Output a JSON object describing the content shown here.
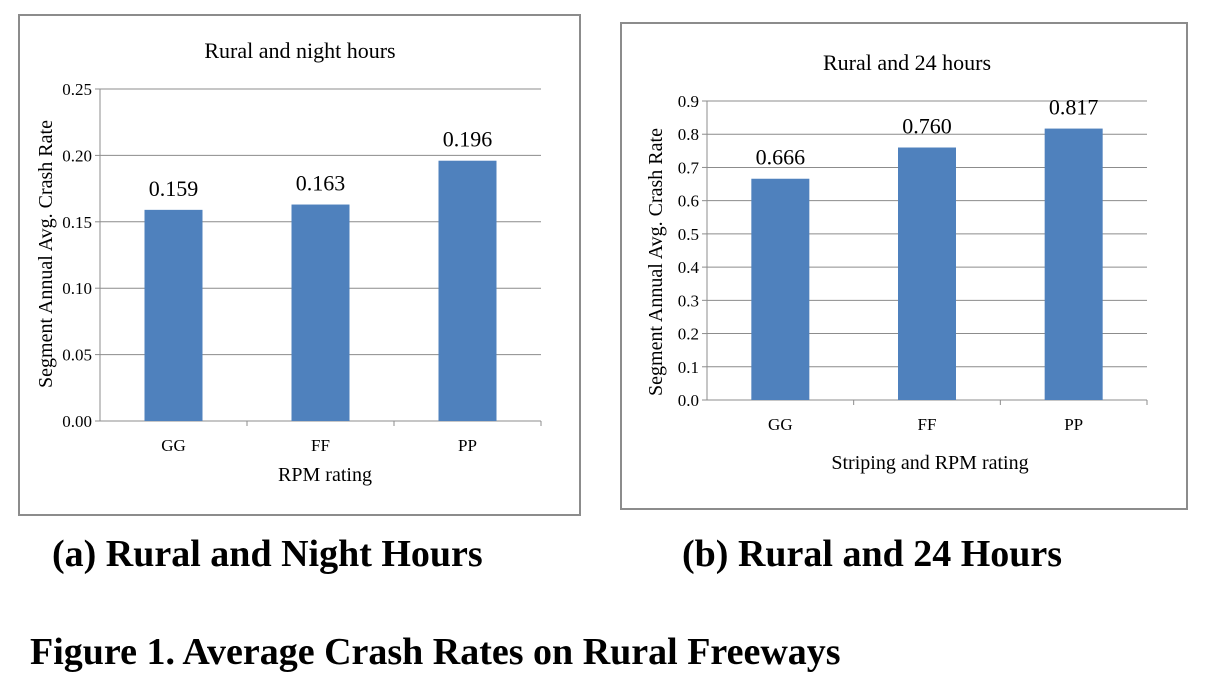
{
  "chart_data": [
    {
      "type": "bar",
      "title": "Rural  and night hours",
      "xlabel": "RPM rating",
      "ylabel": "Segment Annual Avg. Crash Rate",
      "categories": [
        "GG",
        "FF",
        "PP"
      ],
      "values": [
        0.159,
        0.163,
        0.196
      ],
      "data_labels": [
        "0.159",
        "0.163",
        "0.196"
      ],
      "ylim": [
        0,
        0.25
      ],
      "yticks": [
        "0.00",
        "0.05",
        "0.10",
        "0.15",
        "0.20",
        "0.25"
      ],
      "grid": true,
      "bar_color": "#4f81bd"
    },
    {
      "type": "bar",
      "title": "Rural and 24 hours",
      "xlabel": "Striping and RPM rating",
      "ylabel": "Segment Annual Avg. Crash Rate",
      "categories": [
        "GG",
        "FF",
        "PP"
      ],
      "values": [
        0.666,
        0.76,
        0.817
      ],
      "data_labels": [
        "0.666",
        "0.760",
        "0.817"
      ],
      "ylim": [
        0,
        0.9
      ],
      "yticks": [
        "0.0",
        "0.1",
        "0.2",
        "0.3",
        "0.4",
        "0.5",
        "0.6",
        "0.7",
        "0.8",
        "0.9"
      ],
      "grid": true,
      "bar_color": "#4f81bd"
    }
  ],
  "captions": {
    "a": "(a) Rural and Night Hours",
    "b": "(b) Rural and 24 Hours",
    "figure": "Figure 1. Average Crash Rates on Rural Freeways"
  }
}
